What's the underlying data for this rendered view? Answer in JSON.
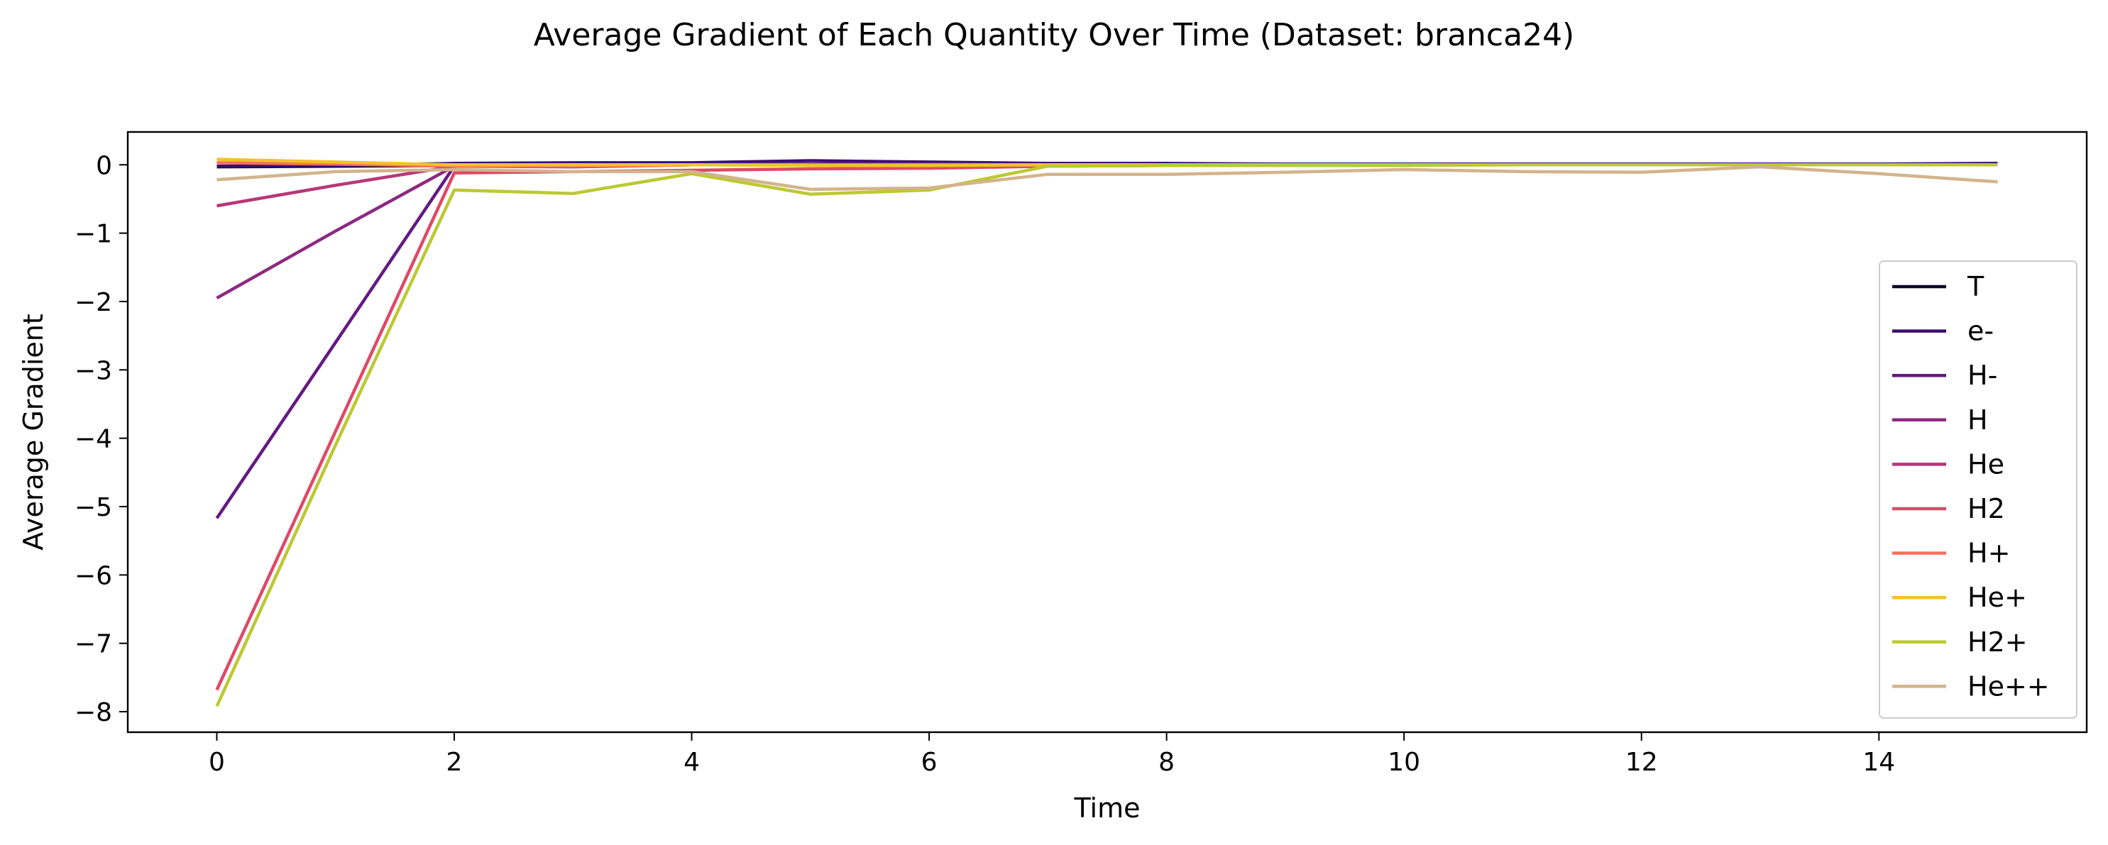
{
  "chart_data": {
    "type": "line",
    "title": "Average Gradient of Each Quantity Over Time (Dataset: branca24)",
    "xlabel": "Time",
    "ylabel": "Average Gradient",
    "xlim": [
      -0.75,
      15.75
    ],
    "ylim": [
      -8.3,
      0.48
    ],
    "xticks": [
      0,
      2,
      4,
      6,
      8,
      10,
      12,
      14
    ],
    "yticks": [
      0,
      -1,
      -2,
      -3,
      -4,
      -5,
      -6,
      -7,
      -8
    ],
    "ytick_labels": [
      "0",
      "−1",
      "−2",
      "−3",
      "−4",
      "−5",
      "−6",
      "−7",
      "−8"
    ],
    "grid": false,
    "legend_position": "center-right",
    "x": [
      0,
      1,
      2,
      3,
      4,
      5,
      6,
      7,
      8,
      9,
      10,
      11,
      12,
      13,
      14,
      15
    ],
    "series": [
      {
        "name": "T",
        "color": "#0d0829",
        "values": [
          -0.03,
          -0.02,
          -0.01,
          -0.01,
          0.0,
          0.0,
          0.0,
          0.0,
          0.0,
          0.0,
          0.0,
          0.0,
          0.0,
          0.0,
          0.0,
          0.0
        ]
      },
      {
        "name": "e-",
        "color": "#3b0f6f",
        "values": [
          -0.02,
          -0.01,
          0.02,
          0.03,
          0.03,
          0.06,
          0.04,
          0.02,
          0.02,
          0.01,
          0.01,
          0.01,
          0.01,
          0.01,
          0.01,
          0.02
        ]
      },
      {
        "name": "H-",
        "color": "#641a80",
        "values": [
          -5.17,
          -2.6,
          -0.02,
          -0.02,
          0.0,
          0.0,
          0.0,
          0.0,
          0.0,
          0.0,
          0.0,
          0.0,
          0.0,
          0.0,
          0.0,
          0.0
        ]
      },
      {
        "name": "H",
        "color": "#8c2981",
        "values": [
          -1.95,
          -0.97,
          -0.02,
          -0.03,
          0.0,
          0.01,
          0.01,
          0.0,
          0.0,
          0.0,
          0.0,
          0.0,
          0.0,
          0.0,
          0.0,
          0.0
        ]
      },
      {
        "name": "He",
        "color": "#b73779",
        "values": [
          -0.6,
          -0.3,
          -0.02,
          -0.02,
          0.0,
          0.0,
          0.0,
          0.0,
          0.0,
          0.0,
          0.0,
          0.0,
          0.0,
          0.0,
          0.0,
          0.0
        ]
      },
      {
        "name": "H2",
        "color": "#de4968",
        "values": [
          -7.68,
          -3.9,
          -0.12,
          -0.1,
          -0.08,
          -0.06,
          -0.05,
          -0.02,
          -0.01,
          0.0,
          0.0,
          0.0,
          0.0,
          0.0,
          0.0,
          0.0
        ]
      },
      {
        "name": "H+",
        "color": "#f7705c",
        "values": [
          0.03,
          0.01,
          -0.02,
          -0.02,
          0.0,
          0.0,
          0.0,
          0.0,
          0.0,
          0.0,
          0.0,
          0.0,
          0.0,
          0.0,
          0.0,
          0.0
        ]
      },
      {
        "name": "He+",
        "color": "#f2c12b",
        "values": [
          0.08,
          0.04,
          0.0,
          0.0,
          0.0,
          -0.01,
          -0.01,
          0.0,
          0.0,
          0.0,
          0.0,
          0.0,
          0.0,
          0.0,
          0.0,
          0.0
        ]
      },
      {
        "name": "H2+",
        "color": "#bcc832",
        "values": [
          -7.92,
          -4.1,
          -0.37,
          -0.42,
          -0.13,
          -0.43,
          -0.37,
          -0.02,
          -0.01,
          -0.01,
          -0.01,
          0.0,
          0.0,
          0.0,
          0.0,
          0.0
        ]
      },
      {
        "name": "He++",
        "color": "#d2b48c",
        "values": [
          -0.22,
          -0.1,
          -0.07,
          -0.1,
          -0.1,
          -0.36,
          -0.34,
          -0.14,
          -0.14,
          -0.11,
          -0.07,
          -0.1,
          -0.11,
          -0.03,
          -0.13,
          -0.25
        ]
      }
    ]
  }
}
